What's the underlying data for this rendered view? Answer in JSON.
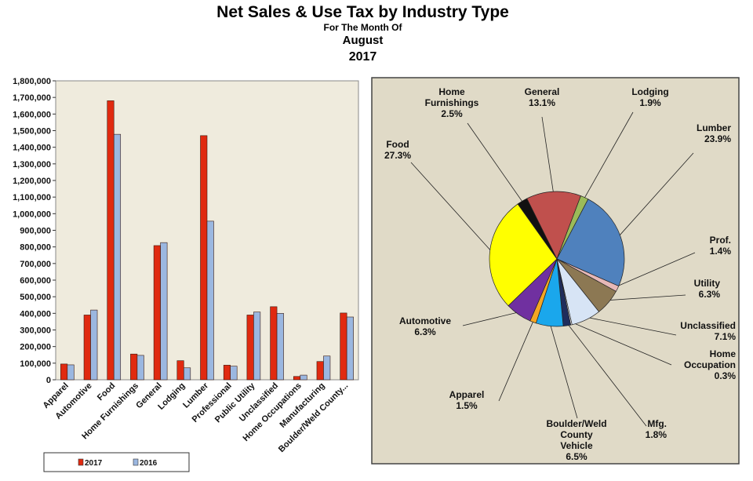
{
  "header": {
    "title": "Net Sales & Use Tax by Industry Type",
    "subtitle": "For The Month Of",
    "month": "August",
    "year": "2017"
  },
  "colors": {
    "series_2017": "#e02a10",
    "series_2016": "#9bb7e0",
    "plot_bg": "#efebdd",
    "pie_bg": "#e0dac7"
  },
  "chart_data": [
    {
      "type": "bar",
      "title": "",
      "xlabel": "",
      "ylabel": "",
      "ylim": [
        0,
        1800000
      ],
      "yticks": [
        "0",
        "100,000",
        "200,000",
        "300,000",
        "400,000",
        "500,000",
        "600,000",
        "700,000",
        "800,000",
        "900,000",
        "1,000,000",
        "1,100,000",
        "1,200,000",
        "1,300,000",
        "1,400,000",
        "1,500,000",
        "1,600,000",
        "1,700,000",
        "1,800,000"
      ],
      "categories": [
        "Apparel",
        "Automotive",
        "Food",
        "Home Furnishings",
        "General",
        "Lodging",
        "Lumber",
        "Professional",
        "Public Utility",
        "Unclassified",
        "Home Occupations",
        "Manufacturing",
        "Boulder/Weld County..."
      ],
      "series": [
        {
          "name": "2017",
          "color": "#e02a10",
          "values": [
            95000,
            390000,
            1680000,
            155000,
            808000,
            115000,
            1470000,
            88000,
            390000,
            440000,
            20000,
            110000,
            402000
          ]
        },
        {
          "name": "2016",
          "color": "#9bb7e0",
          "values": [
            90000,
            420000,
            1478000,
            147000,
            826000,
            72000,
            955000,
            82000,
            408000,
            400000,
            28000,
            143000,
            378000
          ]
        }
      ],
      "legend": {
        "placement": "bottom-left",
        "entries": [
          "2017",
          "2016"
        ]
      },
      "grid": false
    },
    {
      "type": "pie",
      "title": "",
      "slices": [
        {
          "name": "General",
          "label_lines": [
            "General",
            "13.1%"
          ],
          "value": 13.1,
          "color": "#c0504d"
        },
        {
          "name": "Lodging",
          "label_lines": [
            "Lodging",
            "1.9%"
          ],
          "value": 1.9,
          "color": "#9bbb59"
        },
        {
          "name": "Lumber",
          "label_lines": [
            "Lumber",
            "23.9%"
          ],
          "value": 23.9,
          "color": "#4f81bd"
        },
        {
          "name": "Prof.",
          "label_lines": [
            "Prof.",
            "1.4%"
          ],
          "value": 1.4,
          "color": "#e6b8b7"
        },
        {
          "name": "Utility",
          "label_lines": [
            "Utility",
            "6.3%"
          ],
          "value": 6.3,
          "color": "#8c7853"
        },
        {
          "name": "Unclassified",
          "label_lines": [
            "Unclassified",
            "7.1%"
          ],
          "value": 7.1,
          "color": "#d7e4f5"
        },
        {
          "name": "Home Occupation",
          "label_lines": [
            "Home",
            "Occupation",
            "0.3%"
          ],
          "value": 0.3,
          "color": "#ffffff"
        },
        {
          "name": "Mfg.",
          "label_lines": [
            "Mfg.",
            "1.8%"
          ],
          "value": 1.8,
          "color": "#1f2d5c"
        },
        {
          "name": "Boulder/Weld County Vehicle",
          "label_lines": [
            "Boulder/Weld",
            "County",
            "Vehicle",
            "6.5%"
          ],
          "value": 6.5,
          "color": "#1aa7ec"
        },
        {
          "name": "Apparel",
          "label_lines": [
            "Apparel",
            "1.5%"
          ],
          "value": 1.5,
          "color": "#f5a623"
        },
        {
          "name": "Automotive",
          "label_lines": [
            "Automotive",
            "6.3%"
          ],
          "value": 6.3,
          "color": "#7030a0"
        },
        {
          "name": "Food",
          "label_lines": [
            "Food",
            "27.3%"
          ],
          "value": 27.3,
          "color": "#ffff00"
        },
        {
          "name": "Home Furnishings",
          "label_lines": [
            "Home",
            "Furnishings",
            "2.5%"
          ],
          "value": 2.5,
          "color": "#111111"
        }
      ]
    }
  ]
}
